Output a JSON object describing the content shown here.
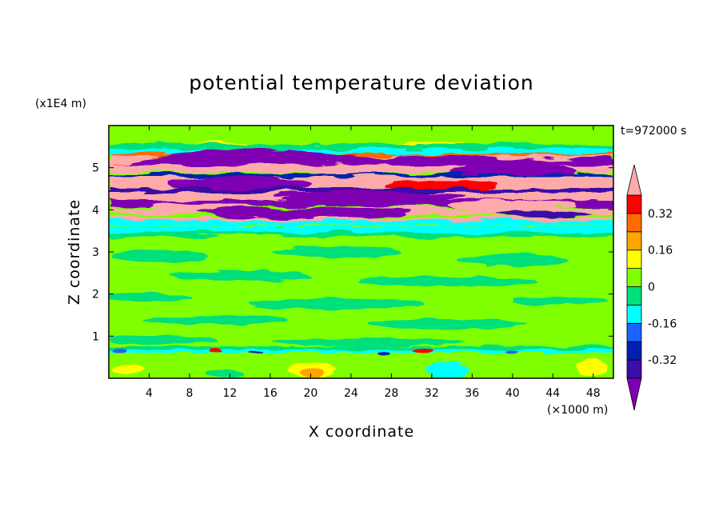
{
  "chart_data": {
    "type": "heatmap",
    "title": "potential temperature deviation",
    "xlabel": "X coordinate",
    "ylabel": "Z coordinate",
    "x_unit": "(×1000 m)",
    "y_unit": "(x1E4 m)",
    "time_label": "t=972000 s",
    "x_ticks": [
      4,
      8,
      12,
      16,
      20,
      24,
      28,
      32,
      36,
      40,
      44,
      48
    ],
    "y_ticks": [
      1,
      2,
      3,
      4,
      5
    ],
    "xlim": [
      0,
      50
    ],
    "ylim": [
      0,
      6
    ],
    "colorbar": {
      "levels": [
        -0.4,
        -0.32,
        -0.24,
        -0.16,
        -0.08,
        0,
        0.08,
        0.16,
        0.24,
        0.32,
        0.4
      ],
      "labels": [
        "0.32",
        "0.16",
        "0",
        "-0.16",
        "-0.32"
      ],
      "label_values": [
        0.32,
        0.16,
        0,
        -0.16,
        -0.32
      ],
      "colors": [
        "#7f00b2",
        "#3a0ea8",
        "#0020b0",
        "#1b63ff",
        "#00ffff",
        "#00e07a",
        "#80ff00",
        "#ffff00",
        "#ffa500",
        "#ff6b00",
        "#ff0000",
        "#ffaaaa"
      ],
      "extend": "both"
    },
    "bands": [
      {
        "z": [
          0.0,
          0.55
        ],
        "level": "green-yellow"
      },
      {
        "z": [
          0.55,
          0.75
        ],
        "level": "mixed"
      },
      {
        "z": [
          0.75,
          3.4
        ],
        "level": "green"
      },
      {
        "z": [
          3.4,
          3.7
        ],
        "level": "cyan"
      },
      {
        "z": [
          3.7,
          5.5
        ],
        "level": "purple-pink"
      },
      {
        "z": [
          5.5,
          6.0
        ],
        "level": "green"
      }
    ]
  }
}
